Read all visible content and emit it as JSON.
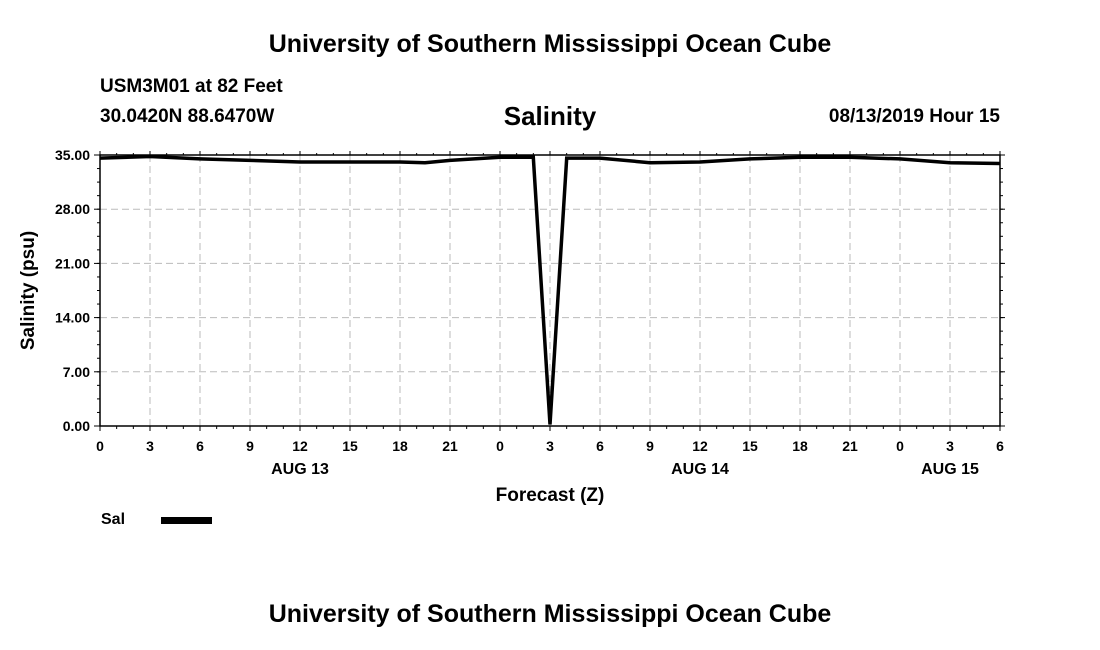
{
  "header": {
    "title": "University of Southern Mississippi Ocean Cube",
    "station": "USM3M01 at 82 Feet",
    "coordinates": "30.0420N 88.6470W",
    "variable": "Salinity",
    "datetime": "08/13/2019 Hour 15"
  },
  "footer": {
    "title": "University of Southern Mississippi Ocean Cube"
  },
  "chart_data": {
    "type": "line",
    "xlabel": "Forecast (Z)",
    "ylabel": "Salinity (psu)",
    "xlim": [
      0,
      54
    ],
    "ylim": [
      0,
      35
    ],
    "yticks": [
      0,
      7,
      14,
      21,
      28,
      35
    ],
    "ytick_labels": [
      "0.00",
      "7.00",
      "14.00",
      "21.00",
      "28.00",
      "35.00"
    ],
    "xtick_labels": [
      "0",
      "3",
      "6",
      "9",
      "12",
      "15",
      "18",
      "21",
      "0",
      "3",
      "6",
      "9",
      "12",
      "15",
      "18",
      "21",
      "0",
      "3",
      "6"
    ],
    "date_labels": [
      {
        "label": "AUG 13",
        "at": 12
      },
      {
        "label": "AUG 14",
        "at": 36
      },
      {
        "label": "AUG 15",
        "at": 51
      }
    ],
    "grid": true,
    "legend_placement": "bottom-left",
    "series": [
      {
        "name": "Sal",
        "color": "#000000",
        "x": [
          0,
          3,
          6,
          9,
          12,
          15,
          18,
          19.5,
          21,
          24,
          26,
          27,
          28,
          30,
          33,
          36,
          39,
          42,
          45,
          48,
          51,
          54
        ],
        "values": [
          34.6,
          34.8,
          34.5,
          34.3,
          34.1,
          34.1,
          34.1,
          34.0,
          34.3,
          34.7,
          34.7,
          0.2,
          34.6,
          34.6,
          34.0,
          34.1,
          34.5,
          34.7,
          34.7,
          34.5,
          34.0,
          33.9
        ]
      }
    ]
  }
}
